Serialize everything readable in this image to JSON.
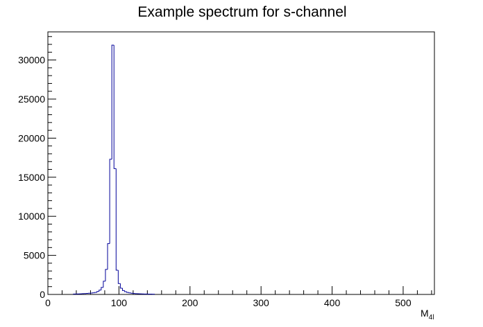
{
  "chart_data": {
    "type": "histogram",
    "title": "Example spectrum for s-channel",
    "xlabel": {
      "text": "M",
      "sub": "4l"
    },
    "bins": [
      36,
      39,
      42,
      45,
      48,
      51,
      54,
      57,
      60,
      63,
      66,
      69,
      72,
      75,
      78,
      81,
      84,
      87,
      90,
      93,
      96,
      99,
      102,
      105,
      108,
      111,
      114,
      117,
      120,
      123,
      126,
      129,
      132,
      135,
      138,
      141,
      144,
      147,
      150
    ],
    "values": [
      50,
      60,
      70,
      80,
      100,
      110,
      130,
      150,
      180,
      210,
      260,
      380,
      550,
      900,
      1700,
      3200,
      6500,
      17300,
      31900,
      16100,
      3100,
      1400,
      800,
      500,
      350,
      250,
      200,
      150,
      120,
      100,
      90,
      80,
      70,
      60,
      50,
      45,
      40,
      35
    ],
    "color": "#000099",
    "xlim": [
      0,
      544
    ],
    "xticks": [
      0,
      100,
      200,
      300,
      400,
      500
    ],
    "xticks_minor": [
      20,
      40,
      60,
      80,
      120,
      140,
      160,
      180,
      220,
      240,
      260,
      280,
      320,
      340,
      360,
      380,
      420,
      440,
      460,
      480,
      520,
      540
    ],
    "ylim": [
      0,
      33600
    ],
    "yticks": [
      0,
      5000,
      10000,
      15000,
      20000,
      25000,
      30000
    ],
    "yticks_minor": [
      1000,
      2000,
      3000,
      4000,
      6000,
      7000,
      8000,
      9000,
      11000,
      12000,
      13000,
      14000,
      16000,
      17000,
      18000,
      19000,
      21000,
      22000,
      23000,
      24000,
      26000,
      27000,
      28000,
      29000,
      31000,
      32000,
      33000
    ]
  }
}
